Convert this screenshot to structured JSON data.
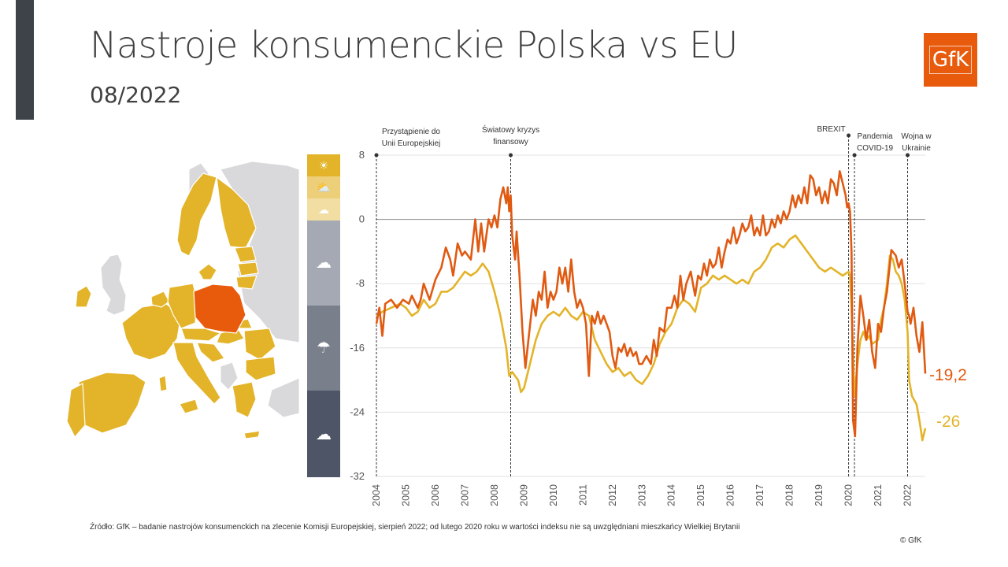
{
  "header": {
    "title": "Nastroje konsumenckie Polska vs EU",
    "subtitle": "08/2022",
    "logo_text": "GfK"
  },
  "footer": {
    "source": "Źródło: GfK – badanie nastrojów konsumenckich na zlecenie Komisji Europejskiej, sierpień 2022; od lutego 2020 roku w wartości indeksu nie są uwzględniani mieszkańcy Wielkiej Brytanii",
    "copyright": "© GfK"
  },
  "colors": {
    "poland": "#e05a12",
    "eu": "#e3b429",
    "map_eu": "#e3b429",
    "map_other": "#d9d9dc",
    "map_poland": "#e85a0c"
  },
  "weather_scale": [
    {
      "icon": "sun-icon",
      "color": "#e3b429"
    },
    {
      "icon": "sun-cloud-icon",
      "color": "#eccf78"
    },
    {
      "icon": "cloud-icon",
      "color": "#f2dea2"
    },
    {
      "icon": "cloud-icon",
      "color": "#a4a9b3"
    },
    {
      "icon": "rain-cloud-icon",
      "color": "#7a808b"
    },
    {
      "icon": "storm-cloud-icon",
      "color": "#4d5566"
    }
  ],
  "chart_data": {
    "type": "line",
    "title": "",
    "xlabel": "",
    "ylabel": "",
    "ylim": [
      -32,
      8
    ],
    "yticks": [
      "8",
      "0",
      "-8",
      "-16",
      "-24",
      "-32"
    ],
    "x_labels": [
      "2004",
      "2005",
      "2006",
      "2007",
      "2008",
      "2009",
      "2010",
      "2011",
      "2012",
      "2013",
      "2014",
      "2015",
      "2016",
      "2017",
      "2018",
      "2019",
      "2020",
      "2021",
      "2022"
    ],
    "xlim": [
      2004.0,
      2022.6
    ],
    "events": [
      {
        "label": "Przystąpienie do Unii Europejskiej",
        "x": 2004.0
      },
      {
        "label": "Światowy kryzys finansowy",
        "x": 2008.55
      },
      {
        "label": "BREXIT",
        "x": 2020.0
      },
      {
        "label": "Pandemia COVID-19",
        "x": 2020.2
      },
      {
        "label": "Wojna w Ukrainie",
        "x": 2022.0
      }
    ],
    "series": [
      {
        "name": "Polska",
        "end_label": "-19,2",
        "points": [
          [
            2004.0,
            -13
          ],
          [
            2004.1,
            -11
          ],
          [
            2004.2,
            -14.5
          ],
          [
            2004.3,
            -10.5
          ],
          [
            2004.5,
            -10
          ],
          [
            2004.7,
            -11
          ],
          [
            2004.9,
            -10
          ],
          [
            2005.1,
            -10.5
          ],
          [
            2005.2,
            -9.5
          ],
          [
            2005.4,
            -11
          ],
          [
            2005.5,
            -10
          ],
          [
            2005.6,
            -8
          ],
          [
            2005.8,
            -10
          ],
          [
            2006.0,
            -7.5
          ],
          [
            2006.2,
            -6
          ],
          [
            2006.35,
            -3.5
          ],
          [
            2006.5,
            -5
          ],
          [
            2006.6,
            -7
          ],
          [
            2006.75,
            -3
          ],
          [
            2006.9,
            -4.5
          ],
          [
            2007.0,
            -4
          ],
          [
            2007.2,
            -5
          ],
          [
            2007.35,
            0
          ],
          [
            2007.45,
            -4
          ],
          [
            2007.55,
            -0.5
          ],
          [
            2007.65,
            -4
          ],
          [
            2007.8,
            0
          ],
          [
            2007.9,
            -1
          ],
          [
            2008.0,
            0.5
          ],
          [
            2008.1,
            -1
          ],
          [
            2008.2,
            2.5
          ],
          [
            2008.3,
            4
          ],
          [
            2008.4,
            2
          ],
          [
            2008.45,
            4
          ],
          [
            2008.5,
            1
          ],
          [
            2008.55,
            3
          ],
          [
            2008.6,
            -2
          ],
          [
            2008.7,
            -5
          ],
          [
            2008.75,
            -1.5
          ],
          [
            2008.85,
            -7
          ],
          [
            2008.95,
            -14
          ],
          [
            2009.05,
            -18.5
          ],
          [
            2009.15,
            -15
          ],
          [
            2009.3,
            -10
          ],
          [
            2009.4,
            -12
          ],
          [
            2009.5,
            -9
          ],
          [
            2009.6,
            -10
          ],
          [
            2009.7,
            -6.5
          ],
          [
            2009.8,
            -11
          ],
          [
            2009.9,
            -9
          ],
          [
            2010.0,
            -10
          ],
          [
            2010.1,
            -9
          ],
          [
            2010.2,
            -6
          ],
          [
            2010.3,
            -8
          ],
          [
            2010.4,
            -6
          ],
          [
            2010.5,
            -9
          ],
          [
            2010.6,
            -5
          ],
          [
            2010.7,
            -9
          ],
          [
            2010.8,
            -11
          ],
          [
            2010.9,
            -10
          ],
          [
            2011.0,
            -11
          ],
          [
            2011.1,
            -13
          ],
          [
            2011.2,
            -19.5
          ],
          [
            2011.3,
            -12
          ],
          [
            2011.4,
            -13
          ],
          [
            2011.5,
            -11.5
          ],
          [
            2011.6,
            -13
          ],
          [
            2011.7,
            -12
          ],
          [
            2011.8,
            -13
          ],
          [
            2011.9,
            -14
          ],
          [
            2012.0,
            -17
          ],
          [
            2012.1,
            -18.5
          ],
          [
            2012.2,
            -16
          ],
          [
            2012.3,
            -16.5
          ],
          [
            2012.4,
            -15.5
          ],
          [
            2012.5,
            -17
          ],
          [
            2012.6,
            -16
          ],
          [
            2012.7,
            -17
          ],
          [
            2012.8,
            -16.5
          ],
          [
            2012.9,
            -18
          ],
          [
            2013.0,
            -18
          ],
          [
            2013.15,
            -17
          ],
          [
            2013.3,
            -18
          ],
          [
            2013.4,
            -15
          ],
          [
            2013.5,
            -17
          ],
          [
            2013.6,
            -13.5
          ],
          [
            2013.75,
            -14
          ],
          [
            2013.85,
            -11
          ],
          [
            2014.0,
            -11
          ],
          [
            2014.1,
            -9.5
          ],
          [
            2014.2,
            -11
          ],
          [
            2014.3,
            -7
          ],
          [
            2014.4,
            -10
          ],
          [
            2014.5,
            -8
          ],
          [
            2014.65,
            -6.5
          ],
          [
            2014.8,
            -9.5
          ],
          [
            2014.9,
            -7
          ],
          [
            2015.0,
            -7.5
          ],
          [
            2015.1,
            -5.5
          ],
          [
            2015.2,
            -7
          ],
          [
            2015.3,
            -5
          ],
          [
            2015.4,
            -6
          ],
          [
            2015.5,
            -5.5
          ],
          [
            2015.6,
            -3.5
          ],
          [
            2015.7,
            -6
          ],
          [
            2015.8,
            -4
          ],
          [
            2015.9,
            -2.5
          ],
          [
            2016.0,
            -3
          ],
          [
            2016.1,
            -1
          ],
          [
            2016.2,
            -3
          ],
          [
            2016.3,
            -2
          ],
          [
            2016.4,
            -0.5
          ],
          [
            2016.5,
            -1.5
          ],
          [
            2016.6,
            -1
          ],
          [
            2016.7,
            0.5
          ],
          [
            2016.8,
            -2
          ],
          [
            2016.9,
            -1
          ],
          [
            2017.0,
            -2
          ],
          [
            2017.1,
            0.5
          ],
          [
            2017.2,
            -2
          ],
          [
            2017.3,
            -1.5
          ],
          [
            2017.4,
            0
          ],
          [
            2017.5,
            -1
          ],
          [
            2017.6,
            0.5
          ],
          [
            2017.7,
            -0.5
          ],
          [
            2017.8,
            1
          ],
          [
            2017.9,
            0
          ],
          [
            2018.0,
            1
          ],
          [
            2018.1,
            3
          ],
          [
            2018.2,
            1.5
          ],
          [
            2018.3,
            3
          ],
          [
            2018.4,
            2
          ],
          [
            2018.5,
            4
          ],
          [
            2018.6,
            2
          ],
          [
            2018.7,
            5.5
          ],
          [
            2018.8,
            5
          ],
          [
            2018.9,
            3
          ],
          [
            2019.0,
            4
          ],
          [
            2019.1,
            2
          ],
          [
            2019.2,
            3.5
          ],
          [
            2019.3,
            2
          ],
          [
            2019.4,
            5
          ],
          [
            2019.5,
            4.5
          ],
          [
            2019.6,
            3
          ],
          [
            2019.7,
            6
          ],
          [
            2019.8,
            4.5
          ],
          [
            2019.9,
            3
          ],
          [
            2019.95,
            1.5
          ],
          [
            2020.0,
            2
          ],
          [
            2020.05,
            1
          ],
          [
            2020.1,
            -4
          ],
          [
            2020.15,
            -25
          ],
          [
            2020.22,
            -27
          ],
          [
            2020.3,
            -16
          ],
          [
            2020.4,
            -9.5
          ],
          [
            2020.5,
            -12
          ],
          [
            2020.6,
            -15
          ],
          [
            2020.7,
            -12.5
          ],
          [
            2020.8,
            -16.5
          ],
          [
            2020.9,
            -18.5
          ],
          [
            2021.0,
            -13
          ],
          [
            2021.1,
            -14
          ],
          [
            2021.2,
            -11
          ],
          [
            2021.3,
            -9
          ],
          [
            2021.45,
            -3.8
          ],
          [
            2021.6,
            -4.5
          ],
          [
            2021.7,
            -6
          ],
          [
            2021.8,
            -5
          ],
          [
            2021.9,
            -8
          ],
          [
            2022.0,
            -11.5
          ],
          [
            2022.05,
            -12
          ],
          [
            2022.1,
            -13
          ],
          [
            2022.2,
            -11
          ],
          [
            2022.3,
            -14.5
          ],
          [
            2022.4,
            -16.5
          ],
          [
            2022.5,
            -12.8
          ],
          [
            2022.6,
            -19.2
          ]
        ]
      },
      {
        "name": "EU",
        "end_label": "-26",
        "points": [
          [
            2004.0,
            -12
          ],
          [
            2004.2,
            -11.5
          ],
          [
            2004.5,
            -11
          ],
          [
            2004.8,
            -10.5
          ],
          [
            2005.0,
            -11
          ],
          [
            2005.2,
            -12
          ],
          [
            2005.4,
            -11.5
          ],
          [
            2005.6,
            -10
          ],
          [
            2005.8,
            -11
          ],
          [
            2006.0,
            -10.5
          ],
          [
            2006.2,
            -9
          ],
          [
            2006.4,
            -9
          ],
          [
            2006.6,
            -8.5
          ],
          [
            2006.8,
            -7.5
          ],
          [
            2007.0,
            -6.5
          ],
          [
            2007.2,
            -7
          ],
          [
            2007.4,
            -6.5
          ],
          [
            2007.6,
            -5.5
          ],
          [
            2007.8,
            -6.5
          ],
          [
            2008.0,
            -9
          ],
          [
            2008.2,
            -12
          ],
          [
            2008.4,
            -16
          ],
          [
            2008.5,
            -19.5
          ],
          [
            2008.6,
            -19
          ],
          [
            2008.8,
            -20
          ],
          [
            2008.9,
            -21.5
          ],
          [
            2009.0,
            -21
          ],
          [
            2009.2,
            -18
          ],
          [
            2009.4,
            -15
          ],
          [
            2009.6,
            -13
          ],
          [
            2009.8,
            -12
          ],
          [
            2010.0,
            -11.5
          ],
          [
            2010.2,
            -12
          ],
          [
            2010.4,
            -11
          ],
          [
            2010.6,
            -12
          ],
          [
            2010.8,
            -12.5
          ],
          [
            2011.0,
            -11.5
          ],
          [
            2011.2,
            -12
          ],
          [
            2011.4,
            -15
          ],
          [
            2011.6,
            -16.5
          ],
          [
            2011.8,
            -18
          ],
          [
            2012.0,
            -19
          ],
          [
            2012.2,
            -18.5
          ],
          [
            2012.4,
            -19.5
          ],
          [
            2012.6,
            -19
          ],
          [
            2012.8,
            -20
          ],
          [
            2013.0,
            -20.5
          ],
          [
            2013.2,
            -19.5
          ],
          [
            2013.4,
            -18
          ],
          [
            2013.6,
            -15.5
          ],
          [
            2013.8,
            -14
          ],
          [
            2014.0,
            -13
          ],
          [
            2014.2,
            -11
          ],
          [
            2014.4,
            -10
          ],
          [
            2014.6,
            -10.5
          ],
          [
            2014.8,
            -11.5
          ],
          [
            2015.0,
            -8.5
          ],
          [
            2015.2,
            -8
          ],
          [
            2015.4,
            -7
          ],
          [
            2015.6,
            -7.5
          ],
          [
            2015.8,
            -7
          ],
          [
            2016.0,
            -7.5
          ],
          [
            2016.2,
            -8
          ],
          [
            2016.4,
            -7.5
          ],
          [
            2016.6,
            -8
          ],
          [
            2016.8,
            -6.5
          ],
          [
            2017.0,
            -6
          ],
          [
            2017.2,
            -5
          ],
          [
            2017.4,
            -3.5
          ],
          [
            2017.6,
            -3
          ],
          [
            2017.8,
            -3.5
          ],
          [
            2018.0,
            -2.5
          ],
          [
            2018.2,
            -2
          ],
          [
            2018.4,
            -3
          ],
          [
            2018.6,
            -4
          ],
          [
            2018.8,
            -5
          ],
          [
            2019.0,
            -6
          ],
          [
            2019.2,
            -6.5
          ],
          [
            2019.4,
            -6
          ],
          [
            2019.6,
            -6.5
          ],
          [
            2019.8,
            -7
          ],
          [
            2020.0,
            -6.5
          ],
          [
            2020.05,
            -7
          ],
          [
            2020.1,
            -11
          ],
          [
            2020.2,
            -22
          ],
          [
            2020.3,
            -18
          ],
          [
            2020.4,
            -15
          ],
          [
            2020.5,
            -14
          ],
          [
            2020.6,
            -15
          ],
          [
            2020.7,
            -14.5
          ],
          [
            2020.8,
            -15.5
          ],
          [
            2021.0,
            -15
          ],
          [
            2021.1,
            -12.5
          ],
          [
            2021.2,
            -11
          ],
          [
            2021.3,
            -8
          ],
          [
            2021.4,
            -4.5
          ],
          [
            2021.5,
            -5
          ],
          [
            2021.6,
            -6.5
          ],
          [
            2021.7,
            -7
          ],
          [
            2021.8,
            -8
          ],
          [
            2021.9,
            -10
          ],
          [
            2022.0,
            -14
          ],
          [
            2022.05,
            -20
          ],
          [
            2022.15,
            -22
          ],
          [
            2022.3,
            -23
          ],
          [
            2022.4,
            -25
          ],
          [
            2022.5,
            -27.5
          ],
          [
            2022.6,
            -26
          ]
        ]
      }
    ]
  }
}
